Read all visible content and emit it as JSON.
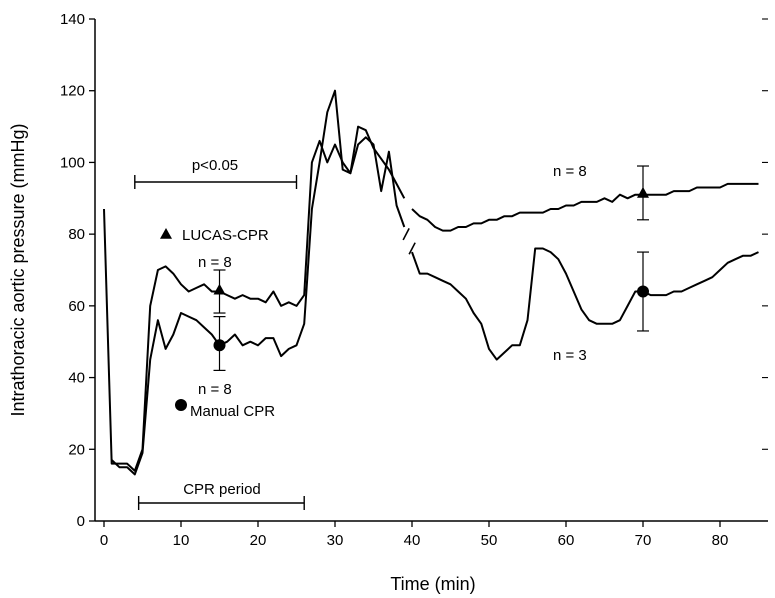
{
  "chart_data": {
    "type": "line",
    "xlabel": "Time (min)",
    "ylabel": "Intrathoracic aortic pressure (mmHg)",
    "xlim": [
      -3,
      85
    ],
    "ylim": [
      0,
      140
    ],
    "x_ticks": [
      0,
      10,
      20,
      30,
      40,
      50,
      60,
      70,
      80
    ],
    "y_ticks": [
      0,
      20,
      40,
      60,
      80,
      100,
      120,
      140
    ],
    "grid": false,
    "series": [
      {
        "name": "LUCAS-CPR",
        "marker": "triangle",
        "color": "#000000",
        "x": [
          0,
          1,
          2,
          3,
          4,
          5,
          6,
          7,
          8,
          9,
          10,
          11,
          12,
          13,
          14,
          15,
          16,
          17,
          18,
          19,
          20,
          21,
          22,
          23,
          24,
          25,
          26,
          27,
          28,
          29,
          30,
          31,
          32,
          33,
          34,
          35,
          36,
          37,
          38,
          39,
          40,
          41,
          42,
          43,
          44,
          45,
          46,
          47,
          48,
          49,
          50,
          51,
          52,
          53,
          54,
          55,
          56,
          57,
          58,
          59,
          60,
          61,
          62,
          63,
          64,
          65,
          66,
          67,
          68,
          69,
          70,
          71,
          72,
          73,
          74,
          75,
          76,
          77,
          78,
          79,
          80,
          81,
          82,
          83,
          84,
          85
        ],
        "values": [
          87,
          16,
          16,
          16,
          14,
          20,
          60,
          70,
          71,
          69,
          66,
          64,
          65,
          66,
          64,
          64,
          63,
          62,
          63,
          62,
          62,
          61,
          64,
          60,
          61,
          60,
          63,
          100,
          106,
          100,
          105,
          100,
          97,
          110,
          109,
          104,
          101,
          98,
          94,
          90,
          87,
          85,
          84,
          82,
          81,
          81,
          82,
          82,
          83,
          83,
          84,
          84,
          85,
          85,
          86,
          86,
          86,
          86,
          87,
          87,
          88,
          88,
          89,
          89,
          89,
          90,
          89,
          91,
          90,
          91,
          91,
          91,
          91,
          91,
          92,
          92,
          92,
          93,
          93,
          93,
          93,
          94,
          94,
          94,
          94,
          94
        ]
      },
      {
        "name": "Manual CPR",
        "marker": "circle",
        "color": "#000000",
        "x": [
          1,
          2,
          3,
          4,
          5,
          6,
          7,
          8,
          9,
          10,
          11,
          12,
          13,
          14,
          15,
          16,
          17,
          18,
          19,
          20,
          21,
          22,
          23,
          24,
          25,
          26,
          27,
          28,
          29,
          30,
          31,
          32,
          33,
          34,
          35,
          36,
          37,
          38,
          39,
          40,
          41,
          42,
          43,
          44,
          45,
          46,
          47,
          48,
          49,
          50,
          51,
          52,
          53,
          54,
          55,
          56,
          57,
          58,
          59,
          60,
          61,
          62,
          63,
          64,
          65,
          66,
          67,
          68,
          69,
          70,
          71,
          72,
          73,
          74,
          75,
          76,
          77,
          78,
          79,
          80,
          81,
          82,
          83,
          84,
          85
        ],
        "values": [
          17,
          15,
          15,
          13,
          19,
          45,
          56,
          48,
          52,
          58,
          57,
          56,
          54,
          52,
          49,
          50,
          52,
          49,
          50,
          49,
          51,
          51,
          46,
          48,
          49,
          55,
          87,
          100,
          114,
          120,
          98,
          97,
          105,
          107,
          105,
          92,
          103,
          88,
          82,
          75,
          69,
          69,
          68,
          67,
          66,
          64,
          62,
          58,
          55,
          48,
          45,
          47,
          49,
          49,
          56,
          76,
          76,
          75,
          73,
          69,
          64,
          59,
          56,
          55,
          55,
          55,
          56,
          60,
          64,
          64,
          63,
          63,
          63,
          64,
          64,
          65,
          66,
          67,
          68,
          70,
          72,
          73,
          74,
          74,
          75
        ]
      }
    ],
    "markers": [
      {
        "series": "LUCAS-CPR",
        "x": 15,
        "y": 64.5,
        "err_low": 58,
        "err_high": 70
      },
      {
        "series": "Manual CPR",
        "x": 15,
        "y": 49,
        "err_low": 42,
        "err_high": 57
      },
      {
        "series": "LUCAS-CPR",
        "x": 70,
        "y": 91.5,
        "err_low": 84,
        "err_high": 99
      },
      {
        "series": "Manual CPR",
        "x": 70,
        "y": 64,
        "err_low": 53,
        "err_high": 75
      }
    ],
    "annotations": {
      "p_value": {
        "text": "p<0.05",
        "x_start": 4,
        "x_end": 25
      },
      "cpr_period": {
        "text": "CPR period",
        "x_start": 4.5,
        "x_end": 26
      },
      "legend_lucas": "LUCAS-CPR",
      "legend_manual": "Manual CPR",
      "n_lucas_left": "n = 8",
      "n_manual_left": "n = 8",
      "n_lucas_right": "n = 8",
      "n_manual_right": "n = 3"
    }
  }
}
